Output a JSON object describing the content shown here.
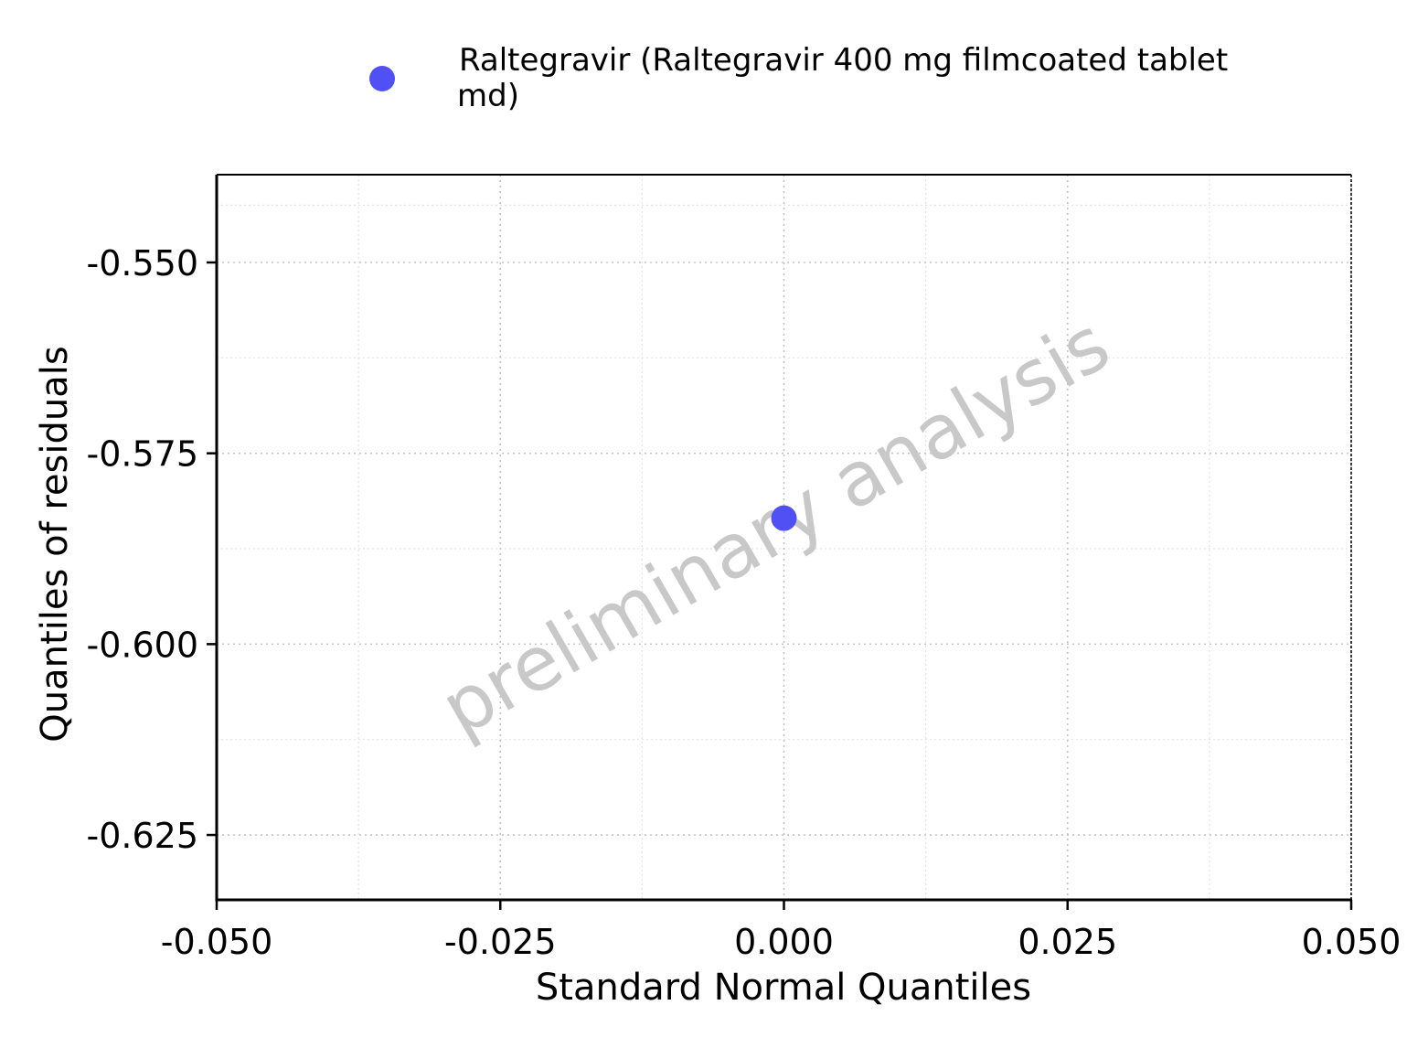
{
  "chart_data": {
    "type": "scatter",
    "xlabel": "Standard Normal Quantiles",
    "ylabel": "Quantiles of residuals",
    "xlim": [
      -0.05,
      0.05
    ],
    "ylim": [
      -0.6335,
      -0.5385
    ],
    "x_ticks": [
      -0.05,
      -0.025,
      0.0,
      0.025,
      0.05
    ],
    "x_tick_labels": [
      "-0.050",
      "-0.025",
      "0.000",
      "0.025",
      "0.050"
    ],
    "y_ticks": [
      -0.55,
      -0.575,
      -0.6,
      -0.625
    ],
    "y_tick_labels": [
      "-0.550",
      "-0.575",
      "-0.600",
      "-0.625"
    ],
    "x_minor_ticks": [
      -0.0375,
      -0.0125,
      0.0125,
      0.0375
    ],
    "y_minor_ticks": [
      -0.5425,
      -0.5625,
      -0.5875,
      -0.6125
    ],
    "grid": true,
    "legend": {
      "placement": "top",
      "label_line1": "Raltegravir (Raltegravir 400 mg filmcoated tablet",
      "label_line2": "md)"
    },
    "series": [
      {
        "name": "Raltegravir (Raltegravir 400 mg filmcoated tablet md)",
        "color": "#5050f5",
        "x": [
          0.0
        ],
        "y": [
          -0.5835
        ]
      }
    ],
    "watermark": "preliminary analysis"
  }
}
